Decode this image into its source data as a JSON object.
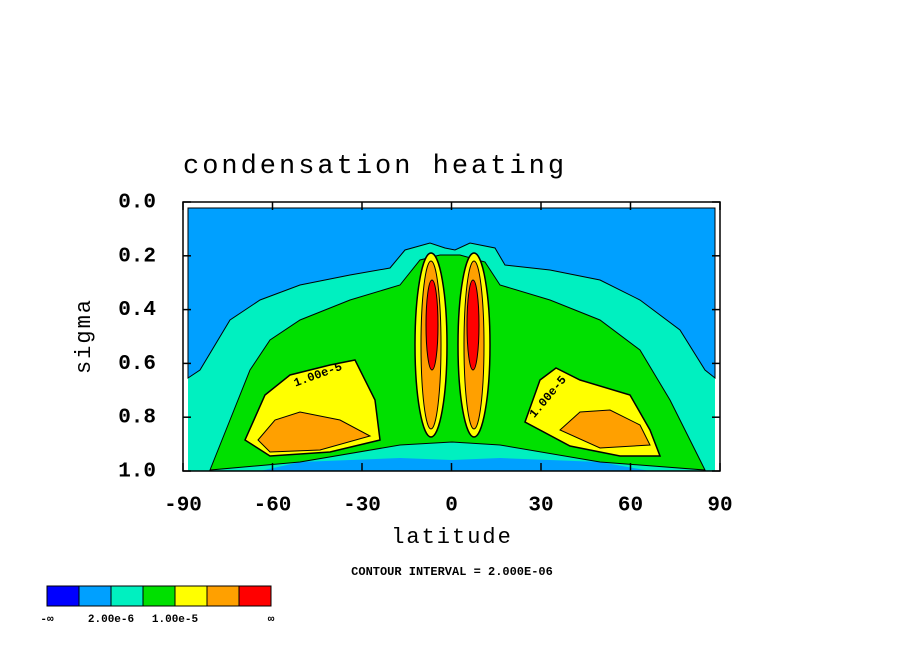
{
  "chart_data": {
    "type": "contour",
    "title": "condensation heating",
    "xlabel": "latitude",
    "ylabel": "sigma",
    "xlim": [
      -90,
      90
    ],
    "xticks": [
      -90,
      -60,
      -30,
      0,
      30,
      60,
      90
    ],
    "ylim": [
      1,
      0
    ],
    "yticks": [
      {
        "value": 0,
        "label": "0.0"
      },
      {
        "value": 0.2,
        "label": "0.2"
      },
      {
        "value": 0.4,
        "label": "0.4"
      },
      {
        "value": 0.6,
        "label": "0.6"
      },
      {
        "value": 0.8,
        "label": "0.8"
      },
      {
        "value": 1,
        "label": "1.0"
      }
    ],
    "annotations": [
      "1.00e-5",
      "1.00e-5"
    ],
    "footnote": "CONTOUR INTERVAL = 2.000E-06",
    "colorbar": {
      "colors": [
        "#0000ff",
        "#00a0ff",
        "#00f0c0",
        "#00e000",
        "#ffff00",
        "#ffa000",
        "#ff0000"
      ],
      "labels": [
        "-∞",
        "2.00e-6",
        "1.00e-5",
        "∞"
      ]
    }
  }
}
